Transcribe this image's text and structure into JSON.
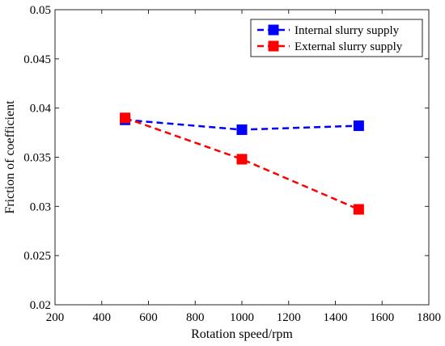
{
  "chart_data": {
    "type": "line",
    "title": "",
    "xlabel": "Rotation speed/rpm",
    "ylabel": "Friction of coefficient",
    "xlim": [
      200,
      1800
    ],
    "ylim": [
      0.02,
      0.05
    ],
    "xticks": [
      200,
      400,
      600,
      800,
      1000,
      1200,
      1400,
      1600,
      1800
    ],
    "yticks": [
      0.02,
      0.025,
      0.03,
      0.035,
      0.04,
      0.045,
      0.05
    ],
    "xtick_labels": [
      "200",
      "400",
      "600",
      "800",
      "1000",
      "1200",
      "1400",
      "1600",
      "1800"
    ],
    "ytick_labels": [
      "0.02",
      "0.025",
      "0.03",
      "0.035",
      "0.04",
      "0.045",
      "0.05"
    ],
    "grid": false,
    "legend_position": "top-right",
    "series": [
      {
        "name": "Internal slurry supply",
        "color": "#0000ff",
        "marker": "square",
        "line_style": "dashed",
        "x": [
          500,
          1000,
          1500
        ],
        "y": [
          0.0388,
          0.0378,
          0.0382
        ]
      },
      {
        "name": "External slurry supply",
        "color": "#ff0000",
        "marker": "square",
        "line_style": "dashed",
        "x": [
          500,
          1000,
          1500
        ],
        "y": [
          0.039,
          0.0348,
          0.0297
        ]
      }
    ]
  }
}
